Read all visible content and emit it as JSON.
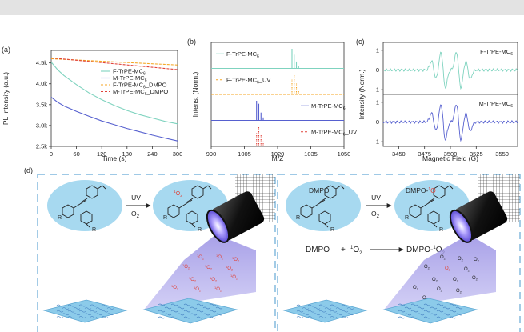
{
  "colors": {
    "teal": "#7fd3bf",
    "blue": "#5660cf",
    "orange": "#f5a623",
    "red": "#e0433a",
    "ball": "#a7d9f0",
    "box": "#66a9d6"
  },
  "panels": {
    "a": "(a)",
    "b": "(b)",
    "c": "(c)",
    "d": "(d)"
  },
  "chart_data": [
    {
      "type": "line",
      "xlabel": "Time (s)",
      "ylabel": "PL Intensity (a.u.)",
      "xlim": [
        0,
        300
      ],
      "ylim": [
        2.5,
        4.8
      ],
      "xticks": [
        0,
        60,
        120,
        180,
        240,
        300
      ],
      "yticks": [
        2.5,
        3.0,
        3.5,
        4.0,
        4.5
      ],
      "yticklabels": [
        "2.5k",
        "3.0k",
        "3.5k",
        "4.0k",
        "4.5k"
      ],
      "legend_position": "right",
      "series": [
        {
          "name": "F-TrPE-MC6",
          "color": "#7fd3bf",
          "dash": "solid",
          "x": [
            0,
            15,
            30,
            60,
            90,
            120,
            150,
            180,
            210,
            240,
            270,
            300
          ],
          "y": [
            4.52,
            4.34,
            4.2,
            3.98,
            3.78,
            3.62,
            3.48,
            3.36,
            3.26,
            3.18,
            3.1,
            3.04
          ]
        },
        {
          "name": "M-TrPE-MC6",
          "color": "#5660cf",
          "dash": "solid",
          "x": [
            0,
            15,
            30,
            60,
            90,
            120,
            150,
            180,
            210,
            240,
            270,
            300
          ],
          "y": [
            3.68,
            3.56,
            3.47,
            3.34,
            3.22,
            3.11,
            3.02,
            2.93,
            2.85,
            2.77,
            2.7,
            2.63
          ]
        },
        {
          "name": "F-TrPE-MC6_DMPO",
          "color": "#f5a623",
          "dash": "dash",
          "x": [
            0,
            300
          ],
          "y": [
            4.6,
            4.45
          ]
        },
        {
          "name": "M-TrPE-MC6_DMPO",
          "color": "#e0433a",
          "dash": "dash",
          "x": [
            0,
            300
          ],
          "y": [
            4.62,
            4.34
          ]
        }
      ]
    },
    {
      "type": "bar",
      "xlabel": "M/Z",
      "ylabel": "Intens. (Norm.)",
      "xlim": [
        990,
        1050
      ],
      "xticks": [
        990,
        1005,
        1020,
        1035,
        1050
      ],
      "series": [
        {
          "name": "F-TrPE-MC6",
          "color": "#7fd3bf",
          "dash": "solid",
          "peaks": [
            [
              1026.5,
              1.0
            ],
            [
              1027.5,
              0.7
            ],
            [
              1028.5,
              0.35
            ],
            [
              1029.5,
              0.12
            ]
          ]
        },
        {
          "name": "F-TrPE-MC6_UV",
          "color": "#f5a623",
          "dash": "dash",
          "peaks": [
            [
              1026.5,
              0.75
            ],
            [
              1027.5,
              1.0
            ],
            [
              1028.5,
              0.55
            ],
            [
              1029.5,
              0.2
            ]
          ]
        },
        {
          "name": "M-TrPE-MC6",
          "color": "#5660cf",
          "dash": "solid",
          "peaks": [
            [
              1010.5,
              1.0
            ],
            [
              1011.5,
              0.85
            ],
            [
              1012.5,
              0.4
            ],
            [
              1013.5,
              0.15
            ]
          ]
        },
        {
          "name": "M-TrPE-MC6_UV",
          "color": "#e0433a",
          "dash": "dash",
          "peaks": [
            [
              1010.5,
              0.7
            ],
            [
              1011.5,
              1.0
            ],
            [
              1012.5,
              0.6
            ],
            [
              1013.5,
              0.25
            ]
          ]
        }
      ]
    },
    {
      "type": "line",
      "xlabel": "Magnetic Field (G)",
      "ylabel": "Intensity (Norm.)",
      "xlim": [
        3435,
        3565
      ],
      "xticks": [
        3450,
        3475,
        3500,
        3525,
        3550
      ],
      "yticks": [
        -1,
        0,
        1
      ],
      "series": [
        {
          "name": "F-TrPE-MC6",
          "color": "#7fd3bf",
          "lines": [
            [
              3484,
              0.45
            ],
            [
              3493,
              0.9
            ],
            [
              3508,
              0.9
            ],
            [
              3517,
              0.45
            ]
          ]
        },
        {
          "name": "M-TrPE-MC6",
          "color": "#5660cf",
          "lines": [
            [
              3484,
              0.45
            ],
            [
              3493,
              0.9
            ],
            [
              3508,
              0.9
            ],
            [
              3517,
              0.45
            ]
          ]
        }
      ]
    }
  ],
  "scheme": {
    "uv": "UV",
    "o2": "O",
    "o2_sub": "2",
    "dmpo": "DMPO",
    "dmpo_o": "DMPO-",
    "r": "R",
    "singlet": "O",
    "singlet_sup": "1",
    "singlet_sub": "2",
    "eq_left": "DMPO",
    "eq_plus": "+",
    "eq_o": "O",
    "eq_o_sup": "1",
    "eq_o_sub": "2",
    "eq_right": "DMPO-",
    "eq_right_o": "O",
    "eq_right_o_sup": "1",
    "eq_right_o_sub": "2",
    "beam_left": "O",
    "beam_left_sup": "1",
    "beam_left_sub": "2",
    "beam_right": "O",
    "beam_right_sub": "2"
  }
}
